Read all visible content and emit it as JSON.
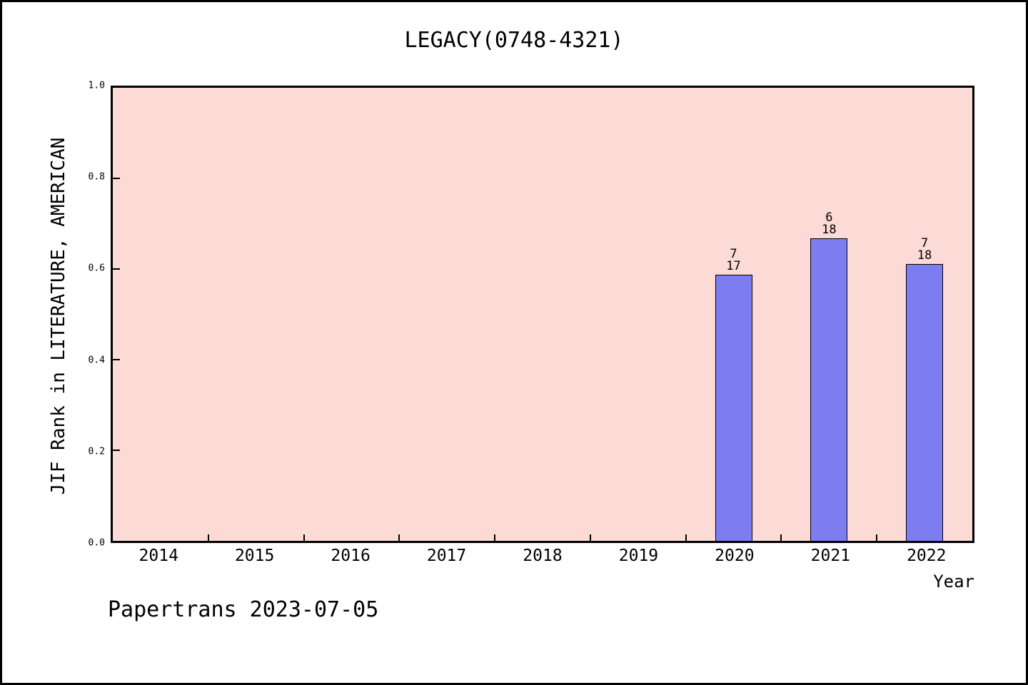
{
  "figure": {
    "footer": "Papertrans 2023-07-05"
  },
  "chart_data": {
    "type": "bar",
    "title": "LEGACY(0748-4321)",
    "xlabel": "Year",
    "ylabel": "JIF Rank in LITERATURE, AMERICAN",
    "categories": [
      "2014",
      "2015",
      "2016",
      "2017",
      "2018",
      "2019",
      "2020",
      "2021",
      "2022"
    ],
    "yticks": [
      "0.0",
      "0.2",
      "0.4",
      "0.6",
      "0.8",
      "1.0"
    ],
    "ylim": [
      0,
      1
    ],
    "grid": false,
    "legend": "none",
    "x_tick_marks": "category-boundaries",
    "bars": [
      {
        "category": "2020",
        "value": 0.588,
        "rank": "7",
        "total": "17"
      },
      {
        "category": "2021",
        "value": 0.667,
        "rank": "6",
        "total": "18"
      },
      {
        "category": "2022",
        "value": 0.611,
        "rank": "7",
        "total": "18"
      }
    ],
    "colors": {
      "bar_fill": "#7D7DF0",
      "bar_edge": "#000000",
      "plot_bg": "#FCDAD5",
      "figure_bg": "#FFFFFF",
      "text": "#000000"
    }
  }
}
